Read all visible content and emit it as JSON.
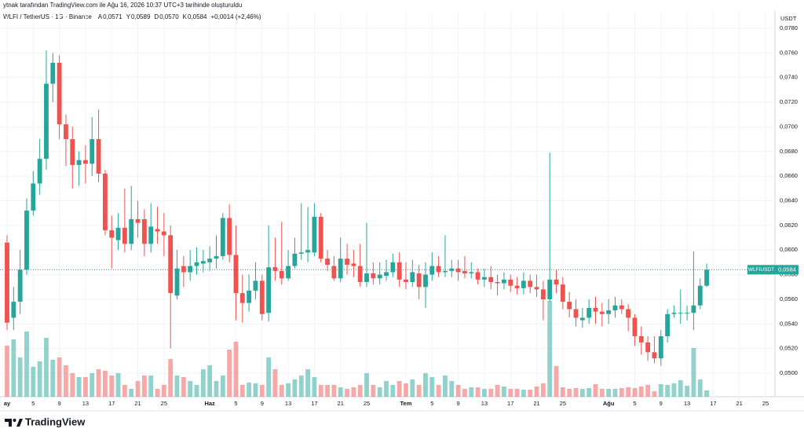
{
  "chart_data": {
    "type": "candlestick",
    "credit": "ytnak tarafından TradingView.com ile Ağu 16, 2026 10:37 UTC+3 tarihinde oluşturuldu",
    "symbol_title": "WLFI / TetherUS · 1G · Binance",
    "ohlc_legend": [
      {
        "key": "A",
        "label": "0,0571"
      },
      {
        "key": "Y",
        "label": "0,0589"
      },
      {
        "key": "D",
        "label": "0,0570"
      },
      {
        "key": "K",
        "label": "0,0584"
      }
    ],
    "change_label": "+0,0014 (+2,46%)",
    "currency": "USDT",
    "brand": "TradingView",
    "up_color": "#26a69a",
    "down_color": "#ef5350",
    "series": [
      {
        "name": "WLFIUSDT",
        "open": [
          0.0606,
          0.0545,
          0.0558,
          0.0584,
          0.0632,
          0.0654,
          0.0674,
          0.0735,
          0.0752,
          0.0702,
          0.069,
          0.0669,
          0.0673,
          0.067,
          0.069,
          0.0662,
          0.0616,
          0.0608,
          0.0618,
          0.0605,
          0.0625,
          0.0625,
          0.0605,
          0.0617,
          0.0615,
          0.0612,
          0.0563,
          0.0587,
          0.0582,
          0.0587,
          0.0589,
          0.059,
          0.0593,
          0.0595,
          0.0626,
          0.0596,
          0.0565,
          0.0557,
          0.0567,
          0.0575,
          0.0549,
          0.0586,
          0.0583,
          0.0577,
          0.0587,
          0.0597,
          0.0598,
          0.0598,
          0.0627,
          0.0593,
          0.0587,
          0.0577,
          0.0593,
          0.0589,
          0.0587,
          0.0574,
          0.0581,
          0.0577,
          0.0579,
          0.0582,
          0.059,
          0.0576,
          0.0574,
          0.0581,
          0.057,
          0.058,
          0.0587,
          0.0582,
          0.0583,
          0.0585,
          0.0583,
          0.0581,
          0.0582,
          0.0576,
          0.0578,
          0.0574,
          0.0573,
          0.0576,
          0.0571,
          0.0569,
          0.0575,
          0.057,
          0.0568,
          0.056,
          0.0576,
          0.0572,
          0.0558,
          0.0552,
          0.0543,
          0.0545,
          0.0553,
          0.055,
          0.0548,
          0.0551,
          0.0555,
          0.0552,
          0.0545,
          0.053,
          0.0525,
          0.0517,
          0.0512,
          0.053,
          0.0548,
          0.0549,
          0.0549,
          0.0549,
          0.0555,
          0.0571
        ],
        "high": [
          0.0612,
          0.057,
          0.06,
          0.0642,
          0.0664,
          0.069,
          0.0762,
          0.076,
          0.0758,
          0.071,
          0.07,
          0.068,
          0.0685,
          0.0708,
          0.0714,
          0.0665,
          0.0628,
          0.063,
          0.065,
          0.0652,
          0.064,
          0.0633,
          0.0638,
          0.0635,
          0.063,
          0.062,
          0.06,
          0.0595,
          0.06,
          0.0602,
          0.06,
          0.0603,
          0.0612,
          0.063,
          0.0637,
          0.062,
          0.058,
          0.058,
          0.059,
          0.058,
          0.062,
          0.061,
          0.0623,
          0.06,
          0.061,
          0.0638,
          0.0635,
          0.0638,
          0.063,
          0.06,
          0.0595,
          0.061,
          0.0605,
          0.06,
          0.0605,
          0.0622,
          0.059,
          0.059,
          0.0592,
          0.0597,
          0.0598,
          0.059,
          0.0592,
          0.0588,
          0.059,
          0.0598,
          0.0595,
          0.0612,
          0.0592,
          0.0592,
          0.0595,
          0.059,
          0.0585,
          0.0585,
          0.0587,
          0.058,
          0.0582,
          0.058,
          0.0578,
          0.0582,
          0.058,
          0.058,
          0.0575,
          0.0679,
          0.0584,
          0.0578,
          0.0566,
          0.056,
          0.0553,
          0.056,
          0.0562,
          0.0557,
          0.056,
          0.0562,
          0.056,
          0.0556,
          0.0548,
          0.0538,
          0.053,
          0.053,
          0.0535,
          0.0552,
          0.0555,
          0.0568,
          0.0555,
          0.0599,
          0.0577,
          0.0589
        ],
        "low": [
          0.0535,
          0.0535,
          0.0548,
          0.058,
          0.0628,
          0.0645,
          0.0665,
          0.072,
          0.069,
          0.0668,
          0.065,
          0.0652,
          0.0654,
          0.066,
          0.0655,
          0.0612,
          0.0585,
          0.06,
          0.0598,
          0.06,
          0.061,
          0.0595,
          0.0598,
          0.0605,
          0.0595,
          0.052,
          0.056,
          0.057,
          0.0575,
          0.058,
          0.0582,
          0.0583,
          0.0585,
          0.0592,
          0.059,
          0.0543,
          0.0541,
          0.055,
          0.056,
          0.0543,
          0.0542,
          0.0575,
          0.0572,
          0.0575,
          0.0585,
          0.0592,
          0.059,
          0.0595,
          0.059,
          0.0583,
          0.0575,
          0.0574,
          0.058,
          0.0578,
          0.057,
          0.057,
          0.0572,
          0.0572,
          0.0575,
          0.0578,
          0.057,
          0.0568,
          0.057,
          0.056,
          0.0553,
          0.0575,
          0.0578,
          0.0578,
          0.0578,
          0.0575,
          0.0577,
          0.0577,
          0.0572,
          0.057,
          0.0568,
          0.0563,
          0.0568,
          0.0566,
          0.0564,
          0.0564,
          0.0565,
          0.0562,
          0.0543,
          0.0558,
          0.0565,
          0.0552,
          0.0545,
          0.0538,
          0.0537,
          0.054,
          0.054,
          0.0538,
          0.054,
          0.0545,
          0.0548,
          0.0534,
          0.0522,
          0.0515,
          0.051,
          0.0508,
          0.0506,
          0.0525,
          0.0545,
          0.054,
          0.0543,
          0.0535,
          0.0552,
          0.057
        ],
        "close": [
          0.0541,
          0.0558,
          0.0584,
          0.0632,
          0.0654,
          0.0674,
          0.0735,
          0.0752,
          0.0702,
          0.069,
          0.0669,
          0.0673,
          0.067,
          0.069,
          0.0662,
          0.0616,
          0.061,
          0.0618,
          0.0605,
          0.0625,
          0.0622,
          0.0605,
          0.0619,
          0.0615,
          0.0612,
          0.0565,
          0.0585,
          0.0582,
          0.0587,
          0.059,
          0.0591,
          0.0593,
          0.0595,
          0.0626,
          0.0596,
          0.0565,
          0.0557,
          0.0567,
          0.0575,
          0.0548,
          0.0586,
          0.0583,
          0.0577,
          0.0587,
          0.0597,
          0.0598,
          0.06,
          0.0627,
          0.0593,
          0.0588,
          0.0577,
          0.0593,
          0.0588,
          0.0587,
          0.0574,
          0.0581,
          0.0577,
          0.058,
          0.0582,
          0.059,
          0.0576,
          0.0574,
          0.0582,
          0.057,
          0.058,
          0.0587,
          0.0582,
          0.0583,
          0.0585,
          0.0582,
          0.0581,
          0.0582,
          0.0576,
          0.0578,
          0.0574,
          0.0573,
          0.0576,
          0.0571,
          0.0569,
          0.0575,
          0.057,
          0.0568,
          0.056,
          0.0576,
          0.0572,
          0.0558,
          0.0552,
          0.0545,
          0.0545,
          0.0553,
          0.055,
          0.0548,
          0.0551,
          0.0555,
          0.0552,
          0.0545,
          0.053,
          0.0525,
          0.0517,
          0.0512,
          0.053,
          0.0548,
          0.0549,
          0.0549,
          0.0549,
          0.0555,
          0.0571,
          0.0584
        ],
        "volume": [
          65,
          73,
          50,
          83,
          38,
          45,
          75,
          47,
          50,
          40,
          30,
          25,
          25,
          30,
          35,
          33,
          27,
          30,
          15,
          10,
          20,
          27,
          27,
          10,
          15,
          48,
          27,
          25,
          20,
          15,
          35,
          40,
          20,
          27,
          60,
          70,
          15,
          18,
          17,
          15,
          50,
          35,
          15,
          17,
          22,
          27,
          35,
          25,
          15,
          15,
          15,
          12,
          10,
          12,
          15,
          30,
          15,
          12,
          20,
          15,
          20,
          17,
          22,
          15,
          30,
          25,
          15,
          27,
          20,
          15,
          10,
          12,
          12,
          10,
          10,
          15,
          13,
          10,
          10,
          9,
          9,
          13,
          17,
          122,
          39,
          12,
          10,
          11,
          10,
          11,
          16,
          10,
          10,
          10,
          11,
          12,
          11,
          13,
          15,
          7,
          16,
          15,
          17,
          21,
          14,
          62,
          22,
          8
        ]
      }
    ],
    "last_price": {
      "symbol": "WLFIUSDT",
      "value": 0.0584,
      "label": "0,0584"
    },
    "xlim": [
      -1.08,
      117.2
    ],
    "xticks": [
      {
        "value": 0,
        "label": "ay"
      },
      {
        "value": 4,
        "label": "5"
      },
      {
        "value": 8,
        "label": "9"
      },
      {
        "value": 12,
        "label": "13"
      },
      {
        "value": 16,
        "label": "17"
      },
      {
        "value": 20,
        "label": "21"
      },
      {
        "value": 24,
        "label": "25"
      },
      {
        "value": 31,
        "label": "Haz"
      },
      {
        "value": 35,
        "label": "5"
      },
      {
        "value": 39,
        "label": "9"
      },
      {
        "value": 43,
        "label": "13"
      },
      {
        "value": 47,
        "label": "17"
      },
      {
        "value": 51,
        "label": "21"
      },
      {
        "value": 55,
        "label": "25"
      },
      {
        "value": 61,
        "label": "Tem"
      },
      {
        "value": 65,
        "label": "5"
      },
      {
        "value": 69,
        "label": "9"
      },
      {
        "value": 73,
        "label": "13"
      },
      {
        "value": 77,
        "label": "17"
      },
      {
        "value": 81,
        "label": "21"
      },
      {
        "value": 85,
        "label": "25"
      },
      {
        "value": 92,
        "label": "Ağu"
      },
      {
        "value": 96,
        "label": "5"
      },
      {
        "value": 100,
        "label": "9"
      },
      {
        "value": 104,
        "label": "13"
      },
      {
        "value": 108,
        "label": "17"
      },
      {
        "value": 112,
        "label": "21"
      },
      {
        "value": 116,
        "label": "25"
      }
    ],
    "ylim": [
      0.04809,
      0.0794
    ],
    "yticks": [
      {
        "value": 0.05,
        "label": "0,0500"
      },
      {
        "value": 0.052,
        "label": "0,0520"
      },
      {
        "value": 0.054,
        "label": "0,0540"
      },
      {
        "value": 0.056,
        "label": "0,0560"
      },
      {
        "value": 0.058,
        "label": "0,0580"
      },
      {
        "value": 0.06,
        "label": "0,0600"
      },
      {
        "value": 0.062,
        "label": "0,0620"
      },
      {
        "value": 0.064,
        "label": "0,0640"
      },
      {
        "value": 0.066,
        "label": "0,0660"
      },
      {
        "value": 0.068,
        "label": "0,0680"
      },
      {
        "value": 0.07,
        "label": "0,0700"
      },
      {
        "value": 0.072,
        "label": "0,0720"
      },
      {
        "value": 0.074,
        "label": "0,0740"
      },
      {
        "value": 0.076,
        "label": "0,0760"
      },
      {
        "value": 0.078,
        "label": "0,0780"
      }
    ],
    "volume_lim": [
      0,
      125
    ],
    "grid": true
  }
}
